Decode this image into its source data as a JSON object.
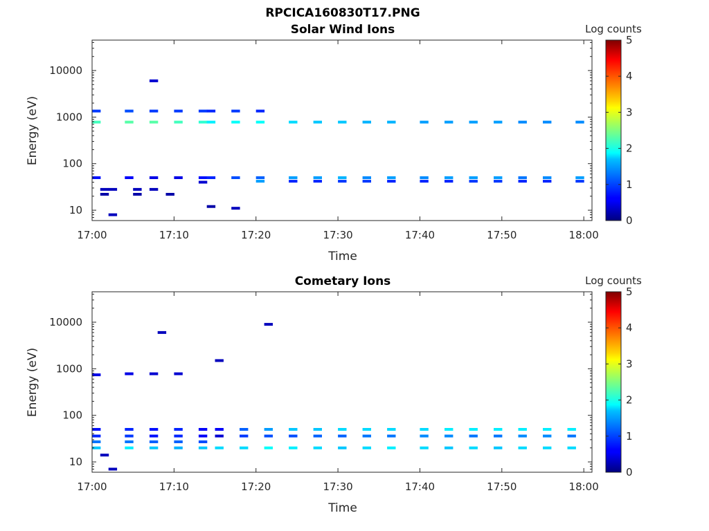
{
  "figure": {
    "title_line1": "RPCICA160830T17.PNG"
  },
  "colorbar": {
    "label": "Log counts",
    "min": 0,
    "max": 5,
    "ticks": [
      "0",
      "1",
      "2",
      "3",
      "4",
      "5"
    ],
    "colormap": "jet"
  },
  "chart_data": [
    {
      "type": "heatmap",
      "title": "Solar Wind Ions",
      "xlabel": "Time",
      "ylabel": "Energy (eV)",
      "y_scale": "log",
      "xlim": [
        "17:00",
        "18:01"
      ],
      "ylim": [
        6,
        45000
      ],
      "xtick_labels": [
        "17:00",
        "17:10",
        "17:20",
        "17:30",
        "17:40",
        "17:50",
        "18:00"
      ],
      "ytick_labels": [
        "10",
        "100",
        "1000",
        "10000"
      ],
      "ytick_values": [
        10,
        100,
        1000,
        10000
      ],
      "grid": false,
      "cells": [
        [
          "17:00",
          780,
          2.2
        ],
        [
          "17:00",
          1350,
          0.9
        ],
        [
          "17:00",
          50,
          0.7
        ],
        [
          "17:01",
          28,
          0.3
        ],
        [
          "17:01",
          22,
          0.2
        ],
        [
          "17:02",
          28,
          0.3
        ],
        [
          "17:02",
          8,
          0.3
        ],
        [
          "17:04",
          780,
          2.3
        ],
        [
          "17:04",
          1350,
          1.0
        ],
        [
          "17:04",
          50,
          0.6
        ],
        [
          "17:05",
          28,
          0.3
        ],
        [
          "17:05",
          22,
          0.2
        ],
        [
          "17:07",
          780,
          2.3
        ],
        [
          "17:07",
          1350,
          0.9
        ],
        [
          "17:07",
          50,
          0.5
        ],
        [
          "17:07",
          28,
          0.3
        ],
        [
          "17:07",
          6000,
          0.4
        ],
        [
          "17:10",
          780,
          2.2
        ],
        [
          "17:10",
          1350,
          0.9
        ],
        [
          "17:10",
          50,
          0.5
        ],
        [
          "17:09",
          22,
          0.2
        ],
        [
          "17:13",
          780,
          2.1
        ],
        [
          "17:13",
          1350,
          0.9
        ],
        [
          "17:13",
          50,
          0.7
        ],
        [
          "17:13",
          40,
          0.4
        ],
        [
          "17:14",
          780,
          1.8
        ],
        [
          "17:14",
          1350,
          0.8
        ],
        [
          "17:14",
          50,
          0.8
        ],
        [
          "17:14",
          12,
          0.2
        ],
        [
          "17:17",
          780,
          1.9
        ],
        [
          "17:17",
          1350,
          0.9
        ],
        [
          "17:17",
          50,
          1.0
        ],
        [
          "17:17",
          11,
          0.3
        ],
        [
          "17:20",
          780,
          1.9
        ],
        [
          "17:20",
          1350,
          0.8
        ],
        [
          "17:20",
          50,
          1.1
        ],
        [
          "17:20",
          42,
          1.4
        ],
        [
          "17:24",
          780,
          1.7
        ],
        [
          "17:24",
          50,
          1.4
        ],
        [
          "17:24",
          42,
          0.8
        ],
        [
          "17:27",
          780,
          1.6
        ],
        [
          "17:27",
          50,
          1.4
        ],
        [
          "17:27",
          42,
          0.8
        ],
        [
          "17:30",
          780,
          1.6
        ],
        [
          "17:30",
          50,
          1.5
        ],
        [
          "17:30",
          42,
          0.9
        ],
        [
          "17:33",
          780,
          1.5
        ],
        [
          "17:33",
          50,
          1.3
        ],
        [
          "17:33",
          42,
          0.9
        ],
        [
          "17:36",
          780,
          1.5
        ],
        [
          "17:36",
          50,
          1.4
        ],
        [
          "17:36",
          42,
          0.8
        ],
        [
          "17:40",
          780,
          1.4
        ],
        [
          "17:40",
          50,
          1.3
        ],
        [
          "17:40",
          42,
          0.8
        ],
        [
          "17:43",
          780,
          1.4
        ],
        [
          "17:43",
          50,
          1.4
        ],
        [
          "17:43",
          42,
          0.8
        ],
        [
          "17:46",
          780,
          1.4
        ],
        [
          "17:46",
          50,
          1.4
        ],
        [
          "17:46",
          42,
          0.9
        ],
        [
          "17:49",
          780,
          1.4
        ],
        [
          "17:49",
          50,
          1.4
        ],
        [
          "17:49",
          42,
          0.9
        ],
        [
          "17:52",
          780,
          1.3
        ],
        [
          "17:52",
          50,
          1.2
        ],
        [
          "17:52",
          42,
          0.8
        ],
        [
          "17:55",
          780,
          1.3
        ],
        [
          "17:55",
          50,
          1.3
        ],
        [
          "17:55",
          42,
          0.8
        ],
        [
          "17:59",
          780,
          1.3
        ],
        [
          "17:59",
          50,
          1.4
        ],
        [
          "17:59",
          42,
          0.9
        ]
      ]
    },
    {
      "type": "heatmap",
      "title": "Cometary Ions",
      "xlabel": "Time",
      "ylabel": "Energy (eV)",
      "y_scale": "log",
      "xlim": [
        "17:00",
        "18:01"
      ],
      "ylim": [
        6,
        45000
      ],
      "xtick_labels": [
        "17:00",
        "17:10",
        "17:20",
        "17:30",
        "17:40",
        "17:50",
        "18:00"
      ],
      "ytick_labels": [
        "10",
        "100",
        "1000",
        "10000"
      ],
      "ytick_values": [
        10,
        100,
        1000,
        10000
      ],
      "grid": false,
      "cells": [
        [
          "17:00",
          20,
          1.6
        ],
        [
          "17:00",
          27,
          1.2
        ],
        [
          "17:00",
          36,
          0.8
        ],
        [
          "17:00",
          50,
          0.7
        ],
        [
          "17:00",
          740,
          0.5
        ],
        [
          "17:01",
          14,
          0.3
        ],
        [
          "17:02",
          7,
          0.3
        ],
        [
          "17:04",
          20,
          1.8
        ],
        [
          "17:04",
          27,
          1.2
        ],
        [
          "17:04",
          36,
          0.9
        ],
        [
          "17:04",
          50,
          0.8
        ],
        [
          "17:04",
          780,
          0.5
        ],
        [
          "17:07",
          20,
          1.6
        ],
        [
          "17:07",
          27,
          1.1
        ],
        [
          "17:07",
          36,
          0.7
        ],
        [
          "17:07",
          50,
          0.7
        ],
        [
          "17:07",
          780,
          0.4
        ],
        [
          "17:08",
          6000,
          0.3
        ],
        [
          "17:10",
          20,
          1.5
        ],
        [
          "17:10",
          27,
          1.1
        ],
        [
          "17:10",
          36,
          0.8
        ],
        [
          "17:10",
          50,
          0.8
        ],
        [
          "17:10",
          780,
          0.4
        ],
        [
          "17:13",
          20,
          1.6
        ],
        [
          "17:13",
          27,
          1.0
        ],
        [
          "17:13",
          36,
          0.6
        ],
        [
          "17:13",
          50,
          0.6
        ],
        [
          "17:15",
          20,
          1.7
        ],
        [
          "17:15",
          36,
          0.4
        ],
        [
          "17:15",
          50,
          0.6
        ],
        [
          "17:15",
          1500,
          0.3
        ],
        [
          "17:18",
          20,
          1.7
        ],
        [
          "17:18",
          36,
          0.9
        ],
        [
          "17:18",
          50,
          1.1
        ],
        [
          "17:21",
          20,
          1.9
        ],
        [
          "17:21",
          36,
          1.0
        ],
        [
          "17:21",
          50,
          1.4
        ],
        [
          "17:21",
          9000,
          0.3
        ],
        [
          "17:24",
          20,
          1.8
        ],
        [
          "17:24",
          36,
          1.0
        ],
        [
          "17:24",
          50,
          1.6
        ],
        [
          "17:27",
          20,
          1.7
        ],
        [
          "17:27",
          36,
          1.1
        ],
        [
          "17:27",
          50,
          1.6
        ],
        [
          "17:30",
          20,
          1.6
        ],
        [
          "17:30",
          36,
          1.1
        ],
        [
          "17:30",
          50,
          1.7
        ],
        [
          "17:33",
          20,
          1.7
        ],
        [
          "17:33",
          36,
          1.2
        ],
        [
          "17:33",
          50,
          1.7
        ],
        [
          "17:36",
          20,
          1.8
        ],
        [
          "17:36",
          36,
          1.2
        ],
        [
          "17:36",
          50,
          1.7
        ],
        [
          "17:40",
          20,
          1.7
        ],
        [
          "17:40",
          36,
          1.3
        ],
        [
          "17:40",
          50,
          1.7
        ],
        [
          "17:43",
          20,
          1.6
        ],
        [
          "17:43",
          36,
          1.3
        ],
        [
          "17:43",
          50,
          1.8
        ],
        [
          "17:46",
          20,
          1.7
        ],
        [
          "17:46",
          36,
          1.2
        ],
        [
          "17:46",
          50,
          1.8
        ],
        [
          "17:49",
          20,
          1.6
        ],
        [
          "17:49",
          36,
          1.2
        ],
        [
          "17:49",
          50,
          1.8
        ],
        [
          "17:52",
          20,
          1.7
        ],
        [
          "17:52",
          36,
          1.3
        ],
        [
          "17:52",
          50,
          1.8
        ],
        [
          "17:55",
          20,
          1.7
        ],
        [
          "17:55",
          36,
          1.3
        ],
        [
          "17:55",
          50,
          1.8
        ],
        [
          "17:58",
          20,
          1.7
        ],
        [
          "17:58",
          36,
          1.2
        ],
        [
          "17:58",
          50,
          1.8
        ]
      ]
    }
  ]
}
